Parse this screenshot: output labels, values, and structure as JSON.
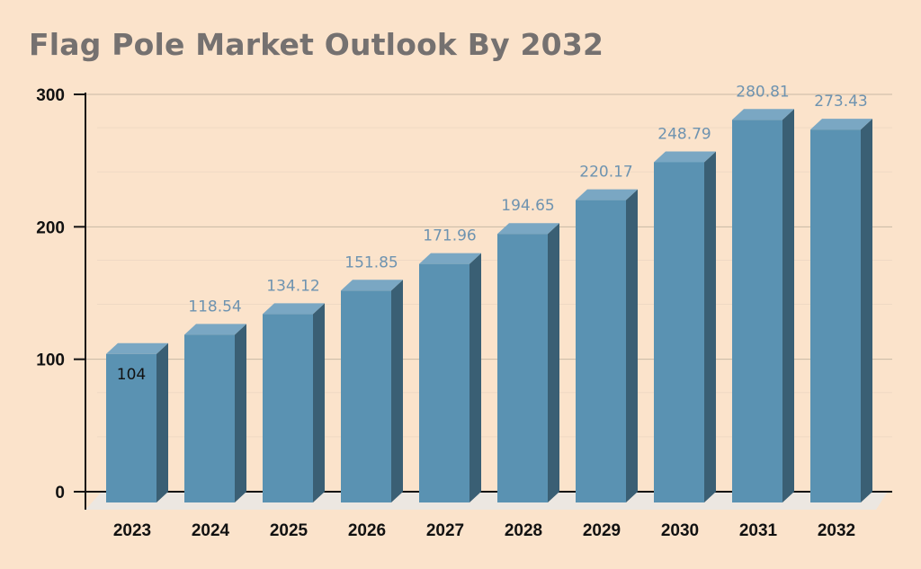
{
  "chart_data": {
    "type": "bar",
    "title": "Flag Pole Market Outlook By 2032",
    "xlabel": "",
    "ylabel": "",
    "categories": [
      "2023",
      "2024",
      "2025",
      "2026",
      "2027",
      "2028",
      "2029",
      "2030",
      "2031",
      "2032"
    ],
    "values": [
      104,
      118.54,
      134.12,
      151.85,
      171.96,
      194.65,
      220.17,
      248.79,
      280.81,
      273.43
    ],
    "data_labels": [
      "104",
      "118.54",
      "134.12",
      "151.85",
      "171.96",
      "194.65",
      "220.17",
      "248.79",
      "280.81",
      "273.43"
    ],
    "ylim": [
      0,
      300
    ],
    "yticks": [
      "0",
      "100",
      "200",
      "300"
    ],
    "grid": true,
    "legend": "none",
    "style": "3d-column",
    "colors": {
      "bar_front": "#5a92b2",
      "bar_top": "#7aa7c3",
      "bar_side": "#3a5f74",
      "gridline": "#c8b8a4",
      "minor_gridline": "#efd9c4",
      "floor": "#ece7e1",
      "label": "#6e93b0",
      "axis": "#111111"
    }
  }
}
